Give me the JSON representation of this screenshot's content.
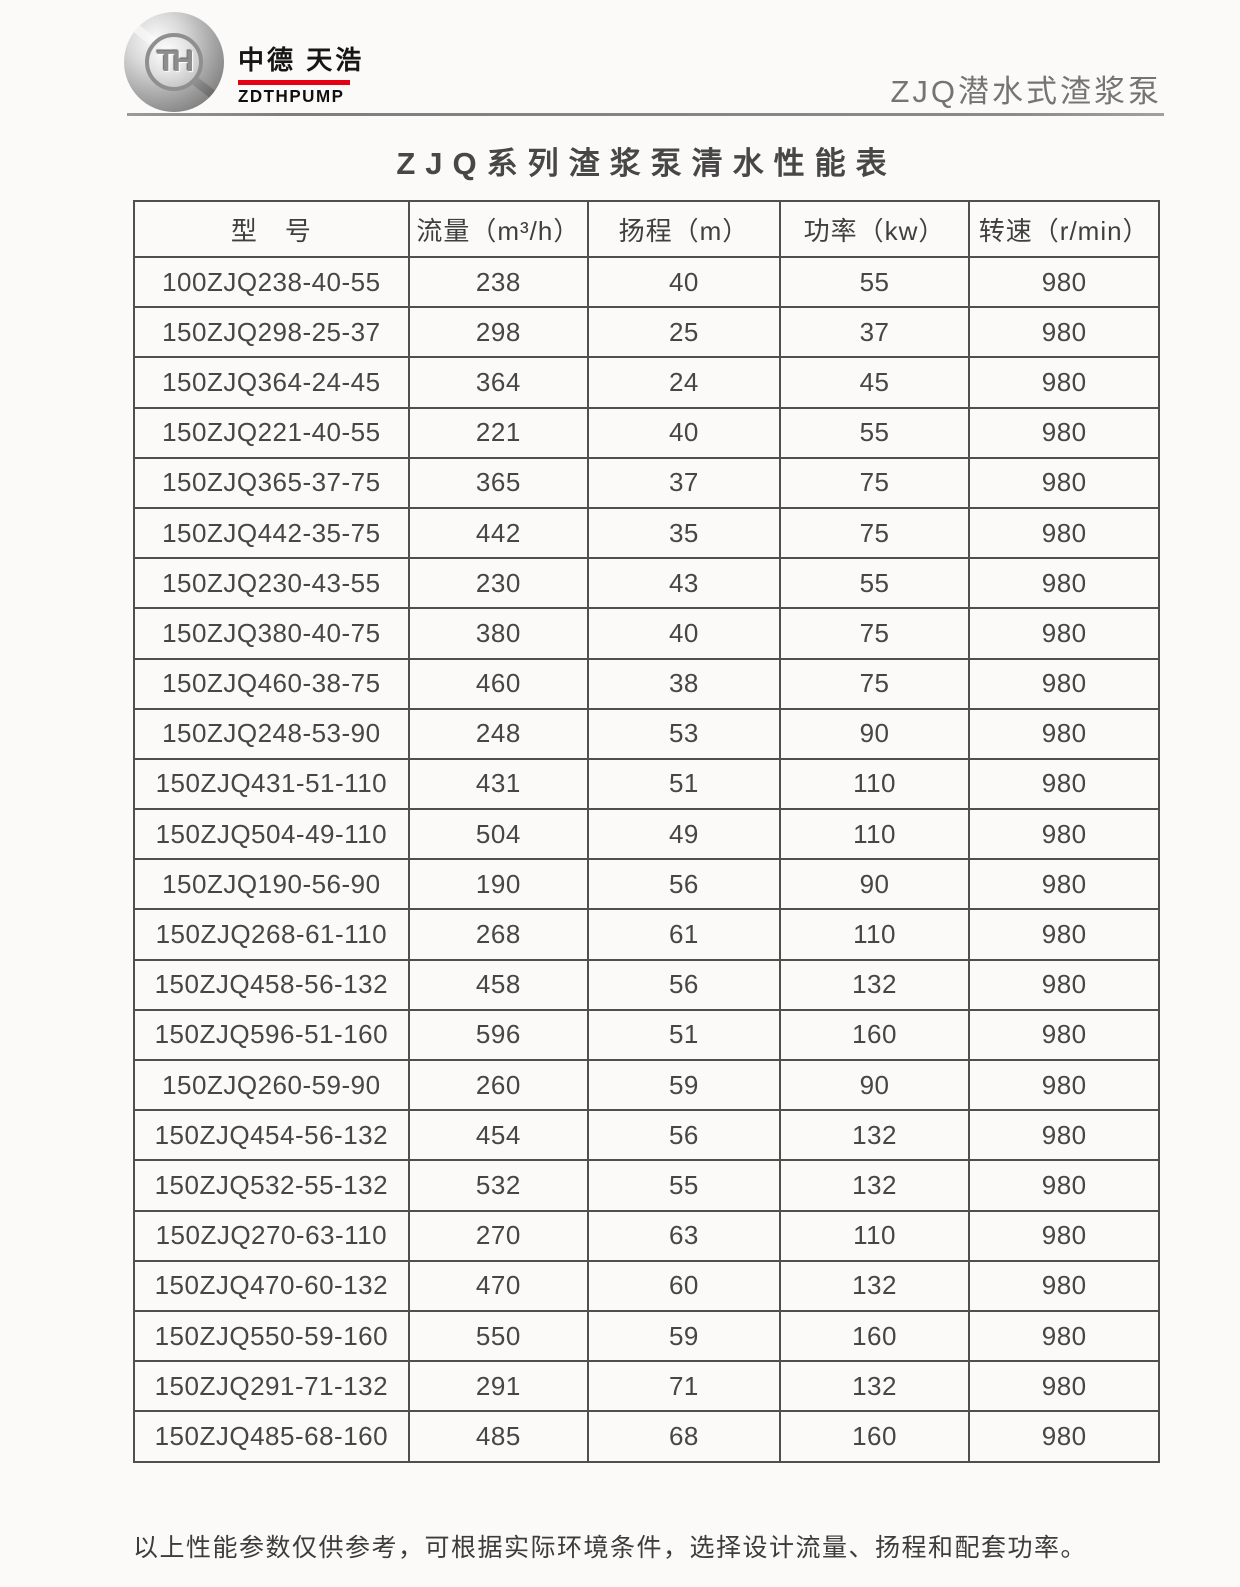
{
  "brand": {
    "logo_monogram": "TH",
    "logo_text_cn": "中德 天浩",
    "logo_text_en": "ZDTHPUMP",
    "accent_red": "#e60012"
  },
  "header": {
    "product_line": "ZJQ潜水式渣浆泵"
  },
  "title": "ZJQ系列渣浆泵清水性能表",
  "table": {
    "columns": [
      "型　号",
      "流量（m³/h）",
      "扬程（m）",
      "功率（kw）",
      "转速（r/min）"
    ],
    "rows": [
      [
        "100ZJQ238-40-55",
        "238",
        "40",
        "55",
        "980"
      ],
      [
        "150ZJQ298-25-37",
        "298",
        "25",
        "37",
        "980"
      ],
      [
        "150ZJQ364-24-45",
        "364",
        "24",
        "45",
        "980"
      ],
      [
        "150ZJQ221-40-55",
        "221",
        "40",
        "55",
        "980"
      ],
      [
        "150ZJQ365-37-75",
        "365",
        "37",
        "75",
        "980"
      ],
      [
        "150ZJQ442-35-75",
        "442",
        "35",
        "75",
        "980"
      ],
      [
        "150ZJQ230-43-55",
        "230",
        "43",
        "55",
        "980"
      ],
      [
        "150ZJQ380-40-75",
        "380",
        "40",
        "75",
        "980"
      ],
      [
        "150ZJQ460-38-75",
        "460",
        "38",
        "75",
        "980"
      ],
      [
        "150ZJQ248-53-90",
        "248",
        "53",
        "90",
        "980"
      ],
      [
        "150ZJQ431-51-110",
        "431",
        "51",
        "110",
        "980"
      ],
      [
        "150ZJQ504-49-110",
        "504",
        "49",
        "110",
        "980"
      ],
      [
        "150ZJQ190-56-90",
        "190",
        "56",
        "90",
        "980"
      ],
      [
        "150ZJQ268-61-110",
        "268",
        "61",
        "110",
        "980"
      ],
      [
        "150ZJQ458-56-132",
        "458",
        "56",
        "132",
        "980"
      ],
      [
        "150ZJQ596-51-160",
        "596",
        "51",
        "160",
        "980"
      ],
      [
        "150ZJQ260-59-90",
        "260",
        "59",
        "90",
        "980"
      ],
      [
        "150ZJQ454-56-132",
        "454",
        "56",
        "132",
        "980"
      ],
      [
        "150ZJQ532-55-132",
        "532",
        "55",
        "132",
        "980"
      ],
      [
        "150ZJQ270-63-110",
        "270",
        "63",
        "110",
        "980"
      ],
      [
        "150ZJQ470-60-132",
        "470",
        "60",
        "132",
        "980"
      ],
      [
        "150ZJQ550-59-160",
        "550",
        "59",
        "160",
        "980"
      ],
      [
        "150ZJQ291-71-132",
        "291",
        "71",
        "132",
        "980"
      ],
      [
        "150ZJQ485-68-160",
        "485",
        "68",
        "160",
        "980"
      ]
    ]
  },
  "footer": {
    "note": "以上性能参数仅供参考，可根据实际环境条件，选择设计流量、扬程和配套功率。"
  }
}
